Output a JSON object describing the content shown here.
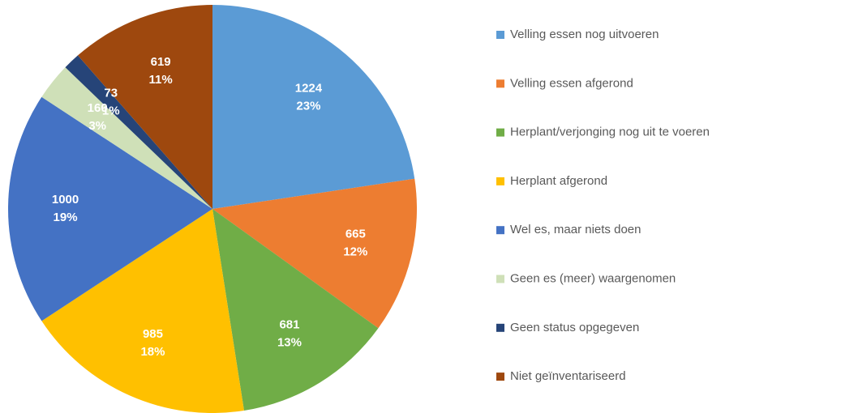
{
  "chart_data": {
    "type": "pie",
    "categories": [
      "Velling essen nog uitvoeren",
      "Velling essen afgerond",
      "Herplant/verjonging nog uit te voeren",
      "Herplant afgerond",
      "Wel es, maar niets doen",
      "Geen es (meer) waargenomen",
      "Geen status opgegeven",
      "Niet geïnventariseerd"
    ],
    "values": [
      1224,
      665,
      681,
      985,
      1000,
      160,
      73,
      619
    ],
    "percent_labels": [
      "23%",
      "12%",
      "13%",
      "18%",
      "19%",
      "3%",
      "1%",
      "11%"
    ],
    "colors": [
      "#5b9bd5",
      "#ed7d31",
      "#70ad47",
      "#ffc000",
      "#4472c4",
      "#cfe0b8",
      "#264478",
      "#9e480e"
    ],
    "legend": "right"
  }
}
